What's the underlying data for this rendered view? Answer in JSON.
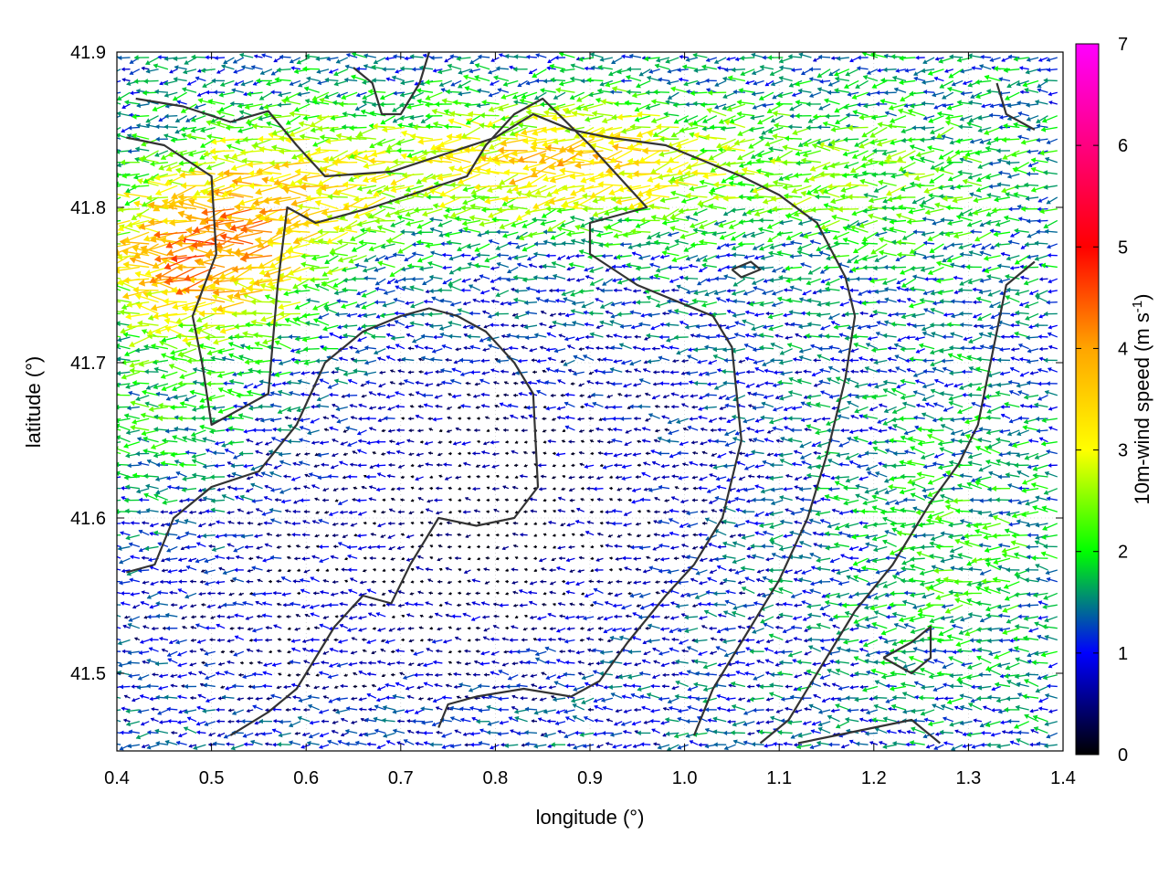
{
  "chart_data": {
    "type": "quiver",
    "xlabel": "longitude (°)",
    "ylabel": "latitude (°)",
    "xlim": [
      0.4,
      1.4
    ],
    "ylim": [
      41.45,
      41.9
    ],
    "xticks": [
      "0.4",
      "0.5",
      "0.6",
      "0.7",
      "0.8",
      "0.9",
      "1.0",
      "1.1",
      "1.2",
      "1.3",
      "1.4"
    ],
    "yticks": [
      "41.5",
      "41.6",
      "41.7",
      "41.8",
      "41.9"
    ],
    "grid": true,
    "colorbar": {
      "label": "10m-wind speed (m s-1)",
      "label_main": "10m-wind speed (m s",
      "label_sup": "-1",
      "label_end": ")",
      "min": 0,
      "max": 7,
      "ticks": [
        "0",
        "1",
        "2",
        "3",
        "4",
        "5",
        "6",
        "7"
      ],
      "colors": [
        "#000000",
        "#0000ff",
        "#00ff00",
        "#ffff00",
        "#ffa500",
        "#ff0000",
        "#ff00ff"
      ]
    },
    "prevailing_direction": "westward (from east)",
    "speed_regions": [
      {
        "region": "north-west (41.70-41.85°N, 0.40-0.65°E)",
        "speed_range": [
          2.5,
          5.0
        ]
      },
      {
        "region": "north band (41.78-41.88°N, 0.75-1.05°E)",
        "speed_range": [
          2.5,
          5.0
        ]
      },
      {
        "region": "central valley (41.50-41.72°N, 0.55-1.05°E)",
        "speed_range": [
          0.0,
          1.5
        ]
      },
      {
        "region": "east (41.50-41.85°N, 1.10-1.40°E)",
        "speed_range": [
          1.0,
          2.5
        ]
      }
    ],
    "contours": [
      [
        [
          0.42,
          41.87
        ],
        [
          0.47,
          41.865
        ],
        [
          0.52,
          41.855
        ],
        [
          0.56,
          41.862
        ],
        [
          0.59,
          41.84
        ],
        [
          0.62,
          41.82
        ],
        [
          0.69,
          41.823
        ],
        [
          0.75,
          41.835
        ],
        [
          0.8,
          41.845
        ],
        [
          0.84,
          41.86
        ],
        [
          0.88,
          41.85
        ],
        [
          0.92,
          41.845
        ],
        [
          0.98,
          41.84
        ],
        [
          1.02,
          41.83
        ],
        [
          1.06,
          41.82
        ],
        [
          1.1,
          41.808
        ],
        [
          1.14,
          41.79
        ],
        [
          1.17,
          41.755
        ],
        [
          1.18,
          41.73
        ]
      ],
      [
        [
          0.41,
          41.845
        ],
        [
          0.45,
          41.84
        ],
        [
          0.5,
          41.82
        ],
        [
          0.505,
          41.77
        ],
        [
          0.48,
          41.73
        ],
        [
          0.49,
          41.7
        ],
        [
          0.5,
          41.66
        ],
        [
          0.56,
          41.68
        ],
        [
          0.57,
          41.75
        ],
        [
          0.58,
          41.8
        ],
        [
          0.61,
          41.79
        ],
        [
          0.67,
          41.8
        ],
        [
          0.72,
          41.81
        ],
        [
          0.77,
          41.82
        ],
        [
          0.79,
          41.84
        ],
        [
          0.82,
          41.86
        ],
        [
          0.85,
          41.87
        ],
        [
          0.9,
          41.84
        ],
        [
          0.93,
          41.82
        ],
        [
          0.96,
          41.8
        ],
        [
          0.93,
          41.795
        ],
        [
          0.9,
          41.79
        ],
        [
          0.9,
          41.77
        ],
        [
          0.95,
          41.75
        ],
        [
          0.99,
          41.74
        ],
        [
          1.03,
          41.73
        ],
        [
          1.05,
          41.71
        ],
        [
          1.06,
          41.65
        ],
        [
          1.04,
          41.6
        ],
        [
          1.01,
          41.57
        ],
        [
          0.98,
          41.55
        ],
        [
          0.94,
          41.52
        ],
        [
          0.91,
          41.495
        ],
        [
          0.88,
          41.485
        ],
        [
          0.83,
          41.49
        ],
        [
          0.78,
          41.485
        ],
        [
          0.75,
          41.48
        ],
        [
          0.74,
          41.465
        ]
      ],
      [
        [
          0.41,
          41.565
        ],
        [
          0.44,
          41.57
        ],
        [
          0.46,
          41.6
        ],
        [
          0.5,
          41.62
        ],
        [
          0.55,
          41.63
        ],
        [
          0.59,
          41.66
        ],
        [
          0.62,
          41.7
        ],
        [
          0.66,
          41.72
        ],
        [
          0.7,
          41.73
        ],
        [
          0.73,
          41.735
        ],
        [
          0.76,
          41.73
        ],
        [
          0.79,
          41.72
        ],
        [
          0.82,
          41.7
        ],
        [
          0.84,
          41.68
        ],
        [
          0.845,
          41.62
        ],
        [
          0.82,
          41.6
        ],
        [
          0.78,
          41.595
        ],
        [
          0.74,
          41.6
        ],
        [
          0.71,
          41.57
        ],
        [
          0.69,
          41.545
        ],
        [
          0.66,
          41.55
        ],
        [
          0.63,
          41.53
        ],
        [
          0.61,
          41.51
        ],
        [
          0.59,
          41.49
        ],
        [
          0.56,
          41.475
        ],
        [
          0.52,
          41.46
        ]
      ],
      [
        [
          1.18,
          41.73
        ],
        [
          1.17,
          41.69
        ],
        [
          1.15,
          41.64
        ],
        [
          1.13,
          41.6
        ],
        [
          1.1,
          41.56
        ],
        [
          1.06,
          41.52
        ],
        [
          1.03,
          41.49
        ],
        [
          1.01,
          41.46
        ]
      ],
      [
        [
          1.37,
          41.765
        ],
        [
          1.34,
          41.75
        ],
        [
          1.33,
          41.72
        ],
        [
          1.32,
          41.69
        ],
        [
          1.31,
          41.66
        ],
        [
          1.29,
          41.635
        ],
        [
          1.26,
          41.61
        ],
        [
          1.22,
          41.57
        ],
        [
          1.18,
          41.54
        ],
        [
          1.14,
          41.5
        ],
        [
          1.11,
          41.47
        ],
        [
          1.08,
          41.455
        ]
      ],
      [
        [
          1.12,
          41.455
        ],
        [
          1.16,
          41.46
        ],
        [
          1.2,
          41.465
        ],
        [
          1.24,
          41.47
        ],
        [
          1.27,
          41.455
        ]
      ],
      [
        [
          0.65,
          41.89
        ],
        [
          0.67,
          41.88
        ],
        [
          0.68,
          41.86
        ],
        [
          0.7,
          41.86
        ],
        [
          0.72,
          41.88
        ],
        [
          0.73,
          41.9
        ]
      ],
      [
        [
          1.21,
          41.51
        ],
        [
          1.24,
          41.5
        ],
        [
          1.26,
          41.51
        ],
        [
          1.26,
          41.53
        ],
        [
          1.24,
          41.52
        ],
        [
          1.21,
          41.51
        ]
      ],
      [
        [
          1.33,
          41.88
        ],
        [
          1.34,
          41.86
        ],
        [
          1.37,
          41.85
        ]
      ],
      [
        [
          1.05,
          41.76
        ],
        [
          1.07,
          41.765
        ],
        [
          1.08,
          41.76
        ],
        [
          1.06,
          41.755
        ],
        [
          1.05,
          41.76
        ]
      ]
    ]
  }
}
